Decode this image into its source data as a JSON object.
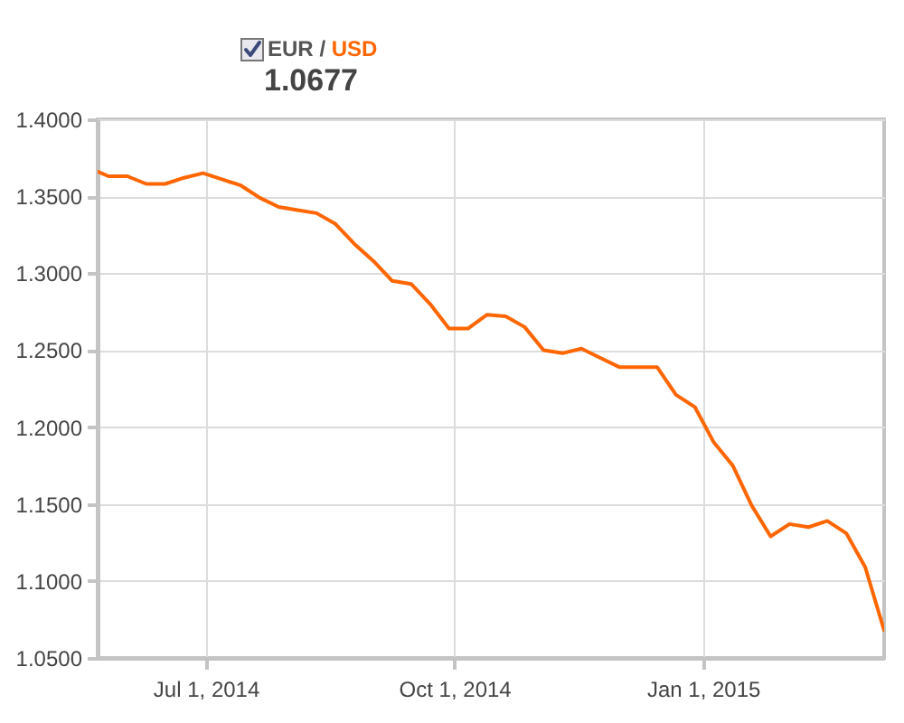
{
  "chart_data": {
    "type": "line",
    "title": "EUR / USD",
    "subtitle": "1.0677",
    "x": [
      "2014-05-22",
      "2014-05-26",
      "2014-06-02",
      "2014-06-09",
      "2014-06-16",
      "2014-06-23",
      "2014-06-30",
      "2014-07-07",
      "2014-07-14",
      "2014-07-21",
      "2014-07-28",
      "2014-08-04",
      "2014-08-11",
      "2014-08-18",
      "2014-08-25",
      "2014-09-01",
      "2014-09-08",
      "2014-09-15",
      "2014-09-22",
      "2014-09-29",
      "2014-10-06",
      "2014-10-13",
      "2014-10-20",
      "2014-10-27",
      "2014-11-03",
      "2014-11-10",
      "2014-11-17",
      "2014-11-24",
      "2014-12-01",
      "2014-12-08",
      "2014-12-15",
      "2014-12-22",
      "2014-12-29",
      "2015-01-05",
      "2015-01-12",
      "2015-01-19",
      "2015-01-26",
      "2015-02-02",
      "2015-02-09",
      "2015-02-16",
      "2015-02-23",
      "2015-03-02",
      "2015-03-09"
    ],
    "series": [
      {
        "color": "#ff6600",
        "values": [
          1.366,
          1.363,
          1.363,
          1.358,
          1.358,
          1.362,
          1.365,
          1.361,
          1.357,
          1.349,
          1.343,
          1.341,
          1.339,
          1.332,
          1.319,
          1.308,
          1.295,
          1.293,
          1.28,
          1.264,
          1.264,
          1.273,
          1.272,
          1.265,
          1.25,
          1.248,
          1.251,
          1.245,
          1.239,
          1.239,
          1.239,
          1.221,
          1.213,
          1.19,
          1.175,
          1.149,
          1.129,
          1.137,
          1.135,
          1.139,
          1.131,
          1.109,
          1.068
        ]
      }
    ],
    "xlim": [
      "2014-05-22",
      "2015-03-09"
    ],
    "xticks": [
      {
        "value": "2014-07-01",
        "label": "Jul 1, 2014"
      },
      {
        "value": "2014-10-01",
        "label": "Oct 1, 2014"
      },
      {
        "value": "2015-01-01",
        "label": "Jan 1, 2015"
      }
    ],
    "ylim": [
      1.05,
      1.4
    ],
    "yticks": [
      {
        "value": 1.05,
        "label": "1.0500"
      },
      {
        "value": 1.1,
        "label": "1.1000"
      },
      {
        "value": 1.15,
        "label": "1.1500"
      },
      {
        "value": 1.2,
        "label": "1.2000"
      },
      {
        "value": 1.25,
        "label": "1.2500"
      },
      {
        "value": 1.3,
        "label": "1.3000"
      },
      {
        "value": 1.35,
        "label": "1.3500"
      },
      {
        "value": 1.4,
        "label": "1.4000"
      }
    ],
    "grid": true
  }
}
